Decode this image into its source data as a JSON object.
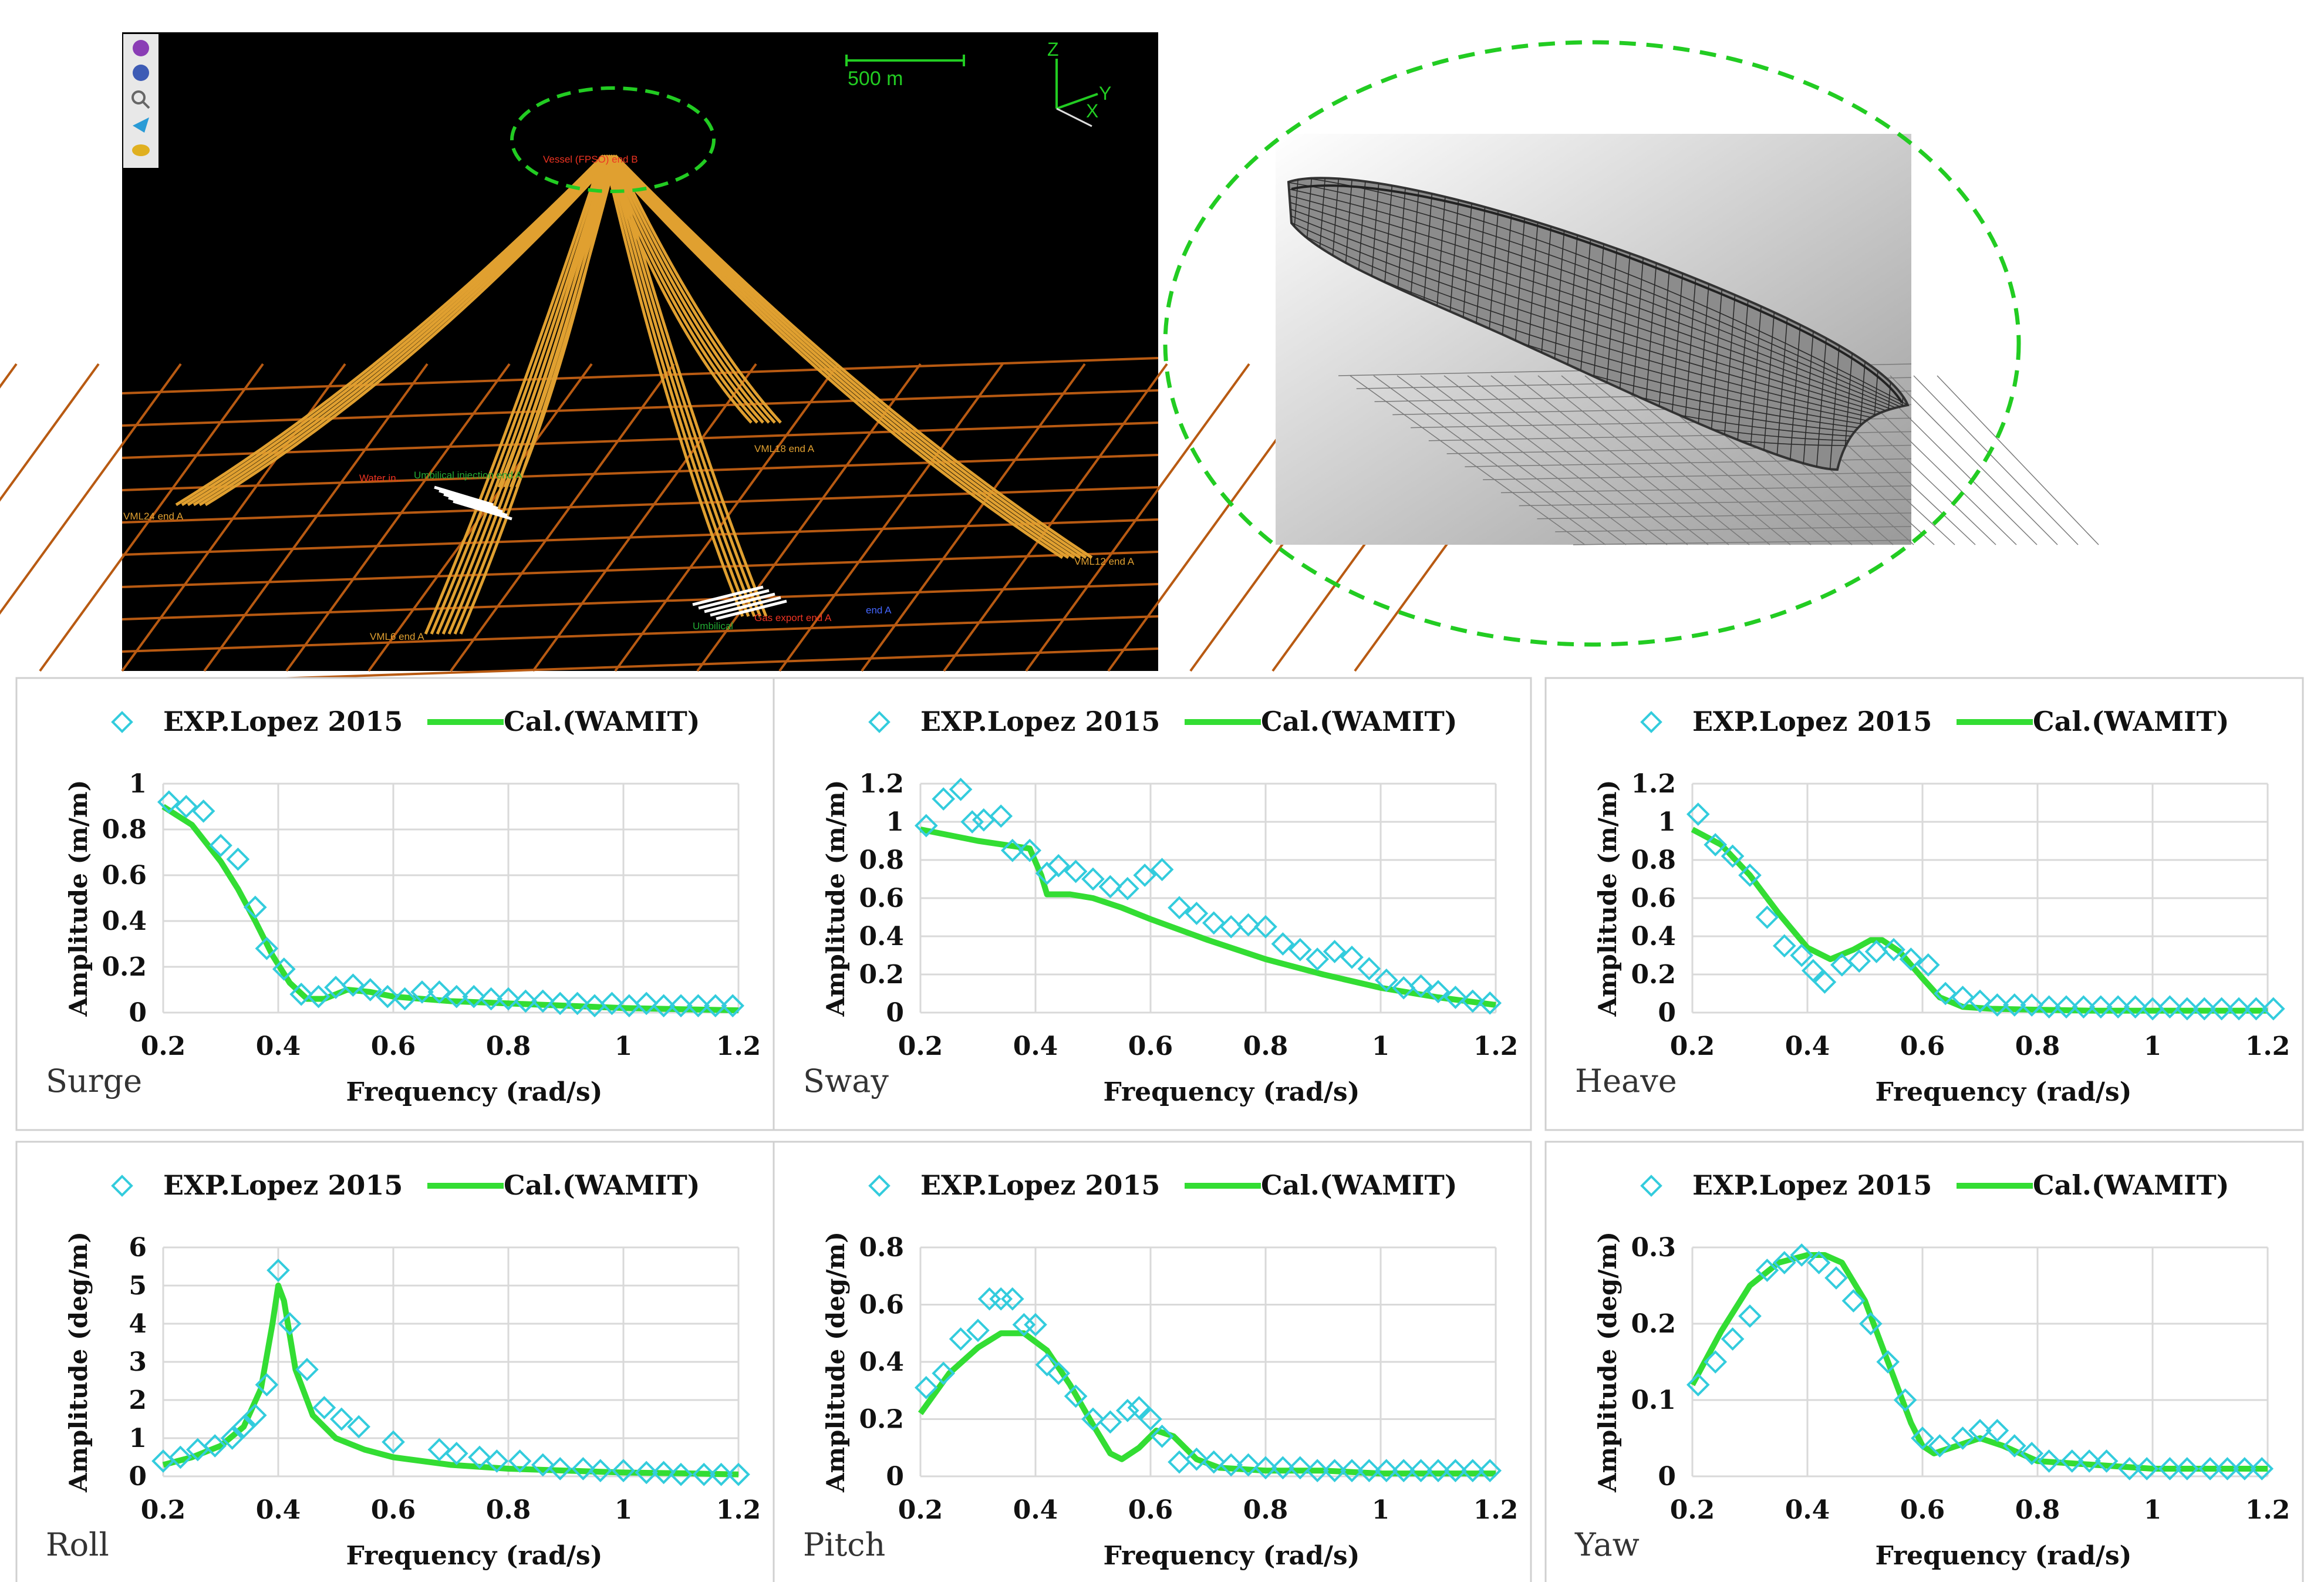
{
  "scene": {
    "scale_label": "500 m",
    "axes": {
      "z": "Z",
      "y": "Y",
      "x": "X"
    },
    "labels": {
      "fpso": "Vessel (FPSO) end B",
      "vml24": "VML24 end A",
      "water_inj": "Water in...",
      "umbilical_inj": "Umbilical injection end A",
      "vml18": "VML18 end A",
      "vml12": "VML12 end A",
      "vml6": "VML6 end A",
      "gas_export": "Gas export end A",
      "umbilical": "Umbilical",
      "prod": "end A"
    }
  },
  "colors": {
    "background_scene": "#000000",
    "lines": "#e0a030",
    "grid": "#b85a12",
    "highlight": "#22cc22",
    "exp_marker": "#33ccdd",
    "cal_line": "#33dd33"
  },
  "legend": {
    "exp": "EXP.Lopez 2015",
    "cal": "Cal.(WAMIT)"
  },
  "chart_data": [
    {
      "type": "line",
      "title": "Surge",
      "xlabel": "Frequency (rad/s)",
      "ylabel": "Amplitude (m/m)",
      "xlim": [
        0.2,
        1.2
      ],
      "ylim": [
        0,
        1
      ],
      "xticks": [
        "0.2",
        "0.4",
        "0.6",
        "0.8",
        "1",
        "1.2"
      ],
      "yticks": [
        "0",
        "0.2",
        "0.4",
        "0.6",
        "0.8",
        "1"
      ],
      "series": [
        {
          "name": "EXP.Lopez 2015",
          "x": [
            0.21,
            0.24,
            0.27,
            0.3,
            0.33,
            0.36,
            0.38,
            0.41,
            0.44,
            0.47,
            0.5,
            0.53,
            0.56,
            0.59,
            0.62,
            0.65,
            0.68,
            0.71,
            0.74,
            0.77,
            0.8,
            0.83,
            0.86,
            0.89,
            0.92,
            0.95,
            0.98,
            1.01,
            1.04,
            1.07,
            1.1,
            1.13,
            1.16,
            1.19
          ],
          "y": [
            0.92,
            0.9,
            0.88,
            0.73,
            0.67,
            0.46,
            0.28,
            0.19,
            0.08,
            0.07,
            0.11,
            0.12,
            0.1,
            0.07,
            0.06,
            0.09,
            0.09,
            0.07,
            0.07,
            0.06,
            0.06,
            0.05,
            0.05,
            0.04,
            0.04,
            0.03,
            0.04,
            0.03,
            0.04,
            0.03,
            0.03,
            0.03,
            0.03,
            0.03
          ]
        },
        {
          "name": "Cal.(WAMIT)",
          "x": [
            0.2,
            0.25,
            0.3,
            0.33,
            0.36,
            0.39,
            0.42,
            0.45,
            0.48,
            0.52,
            0.56,
            0.6,
            0.65,
            0.7,
            0.8,
            0.9,
            1.0,
            1.1,
            1.2
          ],
          "y": [
            0.9,
            0.82,
            0.66,
            0.54,
            0.4,
            0.25,
            0.13,
            0.06,
            0.06,
            0.1,
            0.09,
            0.07,
            0.06,
            0.05,
            0.04,
            0.03,
            0.02,
            0.015,
            0.01
          ]
        }
      ]
    },
    {
      "type": "line",
      "title": "Sway",
      "xlabel": "Frequency (rad/s)",
      "ylabel": "Amplitude (m/m)",
      "xlim": [
        0.2,
        1.2
      ],
      "ylim": [
        0,
        1.2
      ],
      "xticks": [
        "0.2",
        "0.4",
        "0.6",
        "0.8",
        "1",
        "1.2"
      ],
      "yticks": [
        "0",
        "0.2",
        "0.4",
        "0.6",
        "0.8",
        "1",
        "1.2"
      ],
      "series": [
        {
          "name": "EXP.Lopez 2015",
          "x": [
            0.21,
            0.24,
            0.27,
            0.29,
            0.31,
            0.34,
            0.36,
            0.39,
            0.42,
            0.44,
            0.47,
            0.5,
            0.53,
            0.56,
            0.59,
            0.62,
            0.65,
            0.68,
            0.71,
            0.74,
            0.77,
            0.8,
            0.83,
            0.86,
            0.89,
            0.92,
            0.95,
            0.98,
            1.01,
            1.04,
            1.07,
            1.1,
            1.13,
            1.16,
            1.19
          ],
          "y": [
            0.98,
            1.12,
            1.17,
            1.0,
            1.01,
            1.03,
            0.85,
            0.85,
            0.73,
            0.77,
            0.74,
            0.7,
            0.66,
            0.65,
            0.72,
            0.75,
            0.55,
            0.52,
            0.47,
            0.45,
            0.46,
            0.45,
            0.36,
            0.33,
            0.28,
            0.32,
            0.29,
            0.23,
            0.17,
            0.13,
            0.14,
            0.11,
            0.08,
            0.06,
            0.05
          ]
        },
        {
          "name": "Cal.(WAMIT)",
          "x": [
            0.2,
            0.3,
            0.39,
            0.41,
            0.42,
            0.46,
            0.5,
            0.55,
            0.6,
            0.7,
            0.8,
            0.9,
            1.0,
            1.1,
            1.2
          ],
          "y": [
            0.96,
            0.9,
            0.86,
            0.72,
            0.62,
            0.62,
            0.6,
            0.55,
            0.49,
            0.38,
            0.28,
            0.2,
            0.13,
            0.08,
            0.04
          ]
        }
      ]
    },
    {
      "type": "line",
      "title": "Heave",
      "xlabel": "Frequency (rad/s)",
      "ylabel": "Amplitude (m/m)",
      "xlim": [
        0.2,
        1.2
      ],
      "ylim": [
        0,
        1.2
      ],
      "xticks": [
        "0.2",
        "0.4",
        "0.6",
        "0.8",
        "1",
        "1.2"
      ],
      "yticks": [
        "0",
        "0.2",
        "0.4",
        "0.6",
        "0.8",
        "1",
        "1.2"
      ],
      "series": [
        {
          "name": "EXP.Lopez 2015",
          "x": [
            0.21,
            0.24,
            0.27,
            0.3,
            0.33,
            0.36,
            0.39,
            0.41,
            0.43,
            0.46,
            0.49,
            0.52,
            0.55,
            0.58,
            0.61,
            0.64,
            0.67,
            0.7,
            0.73,
            0.76,
            0.79,
            0.82,
            0.85,
            0.88,
            0.91,
            0.94,
            0.97,
            1.0,
            1.03,
            1.06,
            1.09,
            1.12,
            1.15,
            1.18,
            1.21
          ],
          "y": [
            1.04,
            0.88,
            0.82,
            0.72,
            0.5,
            0.35,
            0.3,
            0.22,
            0.16,
            0.25,
            0.27,
            0.32,
            0.33,
            0.28,
            0.25,
            0.1,
            0.08,
            0.06,
            0.04,
            0.04,
            0.04,
            0.03,
            0.03,
            0.03,
            0.03,
            0.03,
            0.03,
            0.02,
            0.03,
            0.02,
            0.02,
            0.02,
            0.02,
            0.02,
            0.02
          ]
        },
        {
          "name": "Cal.(WAMIT)",
          "x": [
            0.2,
            0.25,
            0.3,
            0.35,
            0.4,
            0.44,
            0.48,
            0.51,
            0.53,
            0.56,
            0.6,
            0.63,
            0.67,
            0.72,
            0.8,
            0.9,
            1.0,
            1.1,
            1.2
          ],
          "y": [
            0.96,
            0.88,
            0.72,
            0.52,
            0.34,
            0.28,
            0.33,
            0.38,
            0.38,
            0.32,
            0.18,
            0.08,
            0.03,
            0.02,
            0.015,
            0.01,
            0.01,
            0.01,
            0.01
          ]
        }
      ]
    },
    {
      "type": "line",
      "title": "Roll",
      "xlabel": "Frequency (rad/s)",
      "ylabel": "Amplitude (deg/m)",
      "xlim": [
        0.2,
        1.2
      ],
      "ylim": [
        0,
        6
      ],
      "xticks": [
        "0.2",
        "0.4",
        "0.6",
        "0.8",
        "1",
        "1.2"
      ],
      "yticks": [
        "0",
        "1",
        "2",
        "3",
        "4",
        "5",
        "6"
      ],
      "series": [
        {
          "name": "EXP.Lopez 2015",
          "x": [
            0.2,
            0.23,
            0.26,
            0.29,
            0.32,
            0.34,
            0.36,
            0.38,
            0.4,
            0.42,
            0.45,
            0.48,
            0.51,
            0.54,
            0.6,
            0.68,
            0.71,
            0.75,
            0.78,
            0.82,
            0.86,
            0.89,
            0.93,
            0.96,
            1.0,
            1.04,
            1.07,
            1.1,
            1.14,
            1.17,
            1.2
          ],
          "y": [
            0.4,
            0.5,
            0.7,
            0.8,
            1.0,
            1.3,
            1.6,
            2.4,
            5.4,
            4.0,
            2.8,
            1.8,
            1.5,
            1.3,
            0.9,
            0.7,
            0.6,
            0.5,
            0.4,
            0.4,
            0.3,
            0.2,
            0.2,
            0.15,
            0.15,
            0.1,
            0.1,
            0.05,
            0.05,
            0.05,
            0.05
          ]
        },
        {
          "name": "Cal.(WAMIT)",
          "x": [
            0.2,
            0.25,
            0.3,
            0.34,
            0.37,
            0.39,
            0.4,
            0.41,
            0.43,
            0.46,
            0.5,
            0.55,
            0.6,
            0.7,
            0.8,
            0.9,
            1.0,
            1.1,
            1.2
          ],
          "y": [
            0.3,
            0.5,
            0.8,
            1.3,
            2.3,
            4.0,
            5.0,
            4.6,
            2.8,
            1.6,
            1.0,
            0.7,
            0.5,
            0.3,
            0.2,
            0.15,
            0.1,
            0.08,
            0.05
          ]
        }
      ]
    },
    {
      "type": "line",
      "title": "Pitch",
      "xlabel": "Frequency (rad/s)",
      "ylabel": "Amplitude (deg/m)",
      "xlim": [
        0.2,
        1.2
      ],
      "ylim": [
        0,
        0.8
      ],
      "xticks": [
        "0.2",
        "0.4",
        "0.6",
        "0.8",
        "1",
        "1.2"
      ],
      "yticks": [
        "0",
        "0.2",
        "0.4",
        "0.6",
        "0.8"
      ],
      "series": [
        {
          "name": "EXP.Lopez 2015",
          "x": [
            0.21,
            0.24,
            0.27,
            0.3,
            0.32,
            0.34,
            0.36,
            0.38,
            0.4,
            0.42,
            0.44,
            0.47,
            0.5,
            0.53,
            0.56,
            0.58,
            0.6,
            0.62,
            0.65,
            0.68,
            0.71,
            0.74,
            0.77,
            0.8,
            0.83,
            0.86,
            0.89,
            0.92,
            0.95,
            0.98,
            1.01,
            1.04,
            1.07,
            1.1,
            1.13,
            1.16,
            1.19
          ],
          "y": [
            0.31,
            0.36,
            0.48,
            0.51,
            0.62,
            0.62,
            0.62,
            0.53,
            0.53,
            0.39,
            0.36,
            0.28,
            0.2,
            0.19,
            0.23,
            0.24,
            0.2,
            0.14,
            0.05,
            0.06,
            0.05,
            0.04,
            0.04,
            0.03,
            0.03,
            0.03,
            0.02,
            0.02,
            0.02,
            0.02,
            0.02,
            0.02,
            0.02,
            0.02,
            0.02,
            0.02,
            0.02
          ]
        },
        {
          "name": "Cal.(WAMIT)",
          "x": [
            0.2,
            0.25,
            0.3,
            0.34,
            0.38,
            0.42,
            0.46,
            0.5,
            0.53,
            0.55,
            0.58,
            0.61,
            0.64,
            0.68,
            0.72,
            0.8,
            0.9,
            1.0,
            1.1,
            1.2
          ],
          "y": [
            0.22,
            0.36,
            0.45,
            0.5,
            0.5,
            0.44,
            0.32,
            0.18,
            0.08,
            0.06,
            0.1,
            0.16,
            0.14,
            0.06,
            0.03,
            0.02,
            0.02,
            0.01,
            0.01,
            0.01
          ]
        }
      ]
    },
    {
      "type": "line",
      "title": "Yaw",
      "xlabel": "Frequency (rad/s)",
      "ylabel": "Amplitude (deg/m)",
      "xlim": [
        0.2,
        1.2
      ],
      "ylim": [
        0,
        0.3
      ],
      "xticks": [
        "0.2",
        "0.4",
        "0.6",
        "0.8",
        "1",
        "1.2"
      ],
      "yticks": [
        "0",
        "0.1",
        "0.2",
        "0.3"
      ],
      "series": [
        {
          "name": "EXP.Lopez 2015",
          "x": [
            0.21,
            0.24,
            0.27,
            0.3,
            0.33,
            0.36,
            0.39,
            0.42,
            0.45,
            0.48,
            0.51,
            0.54,
            0.57,
            0.6,
            0.63,
            0.67,
            0.7,
            0.73,
            0.76,
            0.79,
            0.82,
            0.86,
            0.89,
            0.92,
            0.96,
            0.99,
            1.03,
            1.06,
            1.1,
            1.13,
            1.16,
            1.19
          ],
          "y": [
            0.12,
            0.15,
            0.18,
            0.21,
            0.27,
            0.28,
            0.29,
            0.28,
            0.26,
            0.23,
            0.2,
            0.15,
            0.1,
            0.05,
            0.04,
            0.05,
            0.06,
            0.06,
            0.04,
            0.03,
            0.02,
            0.02,
            0.02,
            0.02,
            0.01,
            0.01,
            0.01,
            0.01,
            0.01,
            0.01,
            0.01,
            0.01
          ]
        },
        {
          "name": "Cal.(WAMIT)",
          "x": [
            0.2,
            0.25,
            0.3,
            0.35,
            0.4,
            0.43,
            0.46,
            0.5,
            0.54,
            0.58,
            0.6,
            0.62,
            0.66,
            0.7,
            0.74,
            0.8,
            0.9,
            1.0,
            1.1,
            1.2
          ],
          "y": [
            0.12,
            0.19,
            0.25,
            0.28,
            0.29,
            0.29,
            0.28,
            0.23,
            0.15,
            0.07,
            0.04,
            0.03,
            0.04,
            0.05,
            0.04,
            0.02,
            0.015,
            0.01,
            0.01,
            0.01
          ]
        }
      ]
    }
  ]
}
